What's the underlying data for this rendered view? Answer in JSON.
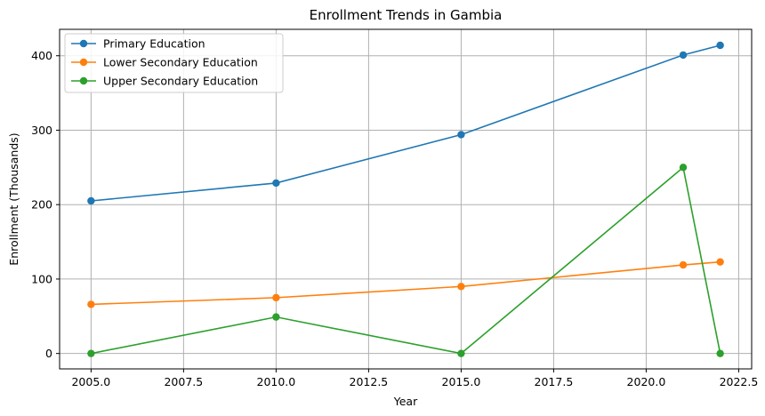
{
  "chart_data": {
    "type": "line",
    "title": "Enrollment Trends in Gambia",
    "xlabel": "Year",
    "ylabel": "Enrollment (Thousands)",
    "x": [
      2005,
      2010,
      2015,
      2021,
      2022
    ],
    "xlim": [
      2004.15,
      2022.85
    ],
    "ylim": [
      -20.7,
      435.5
    ],
    "xticks": [
      2005.0,
      2007.5,
      2010.0,
      2012.5,
      2015.0,
      2017.5,
      2020.0,
      2022.5
    ],
    "xtick_labels": [
      "2005.0",
      "2007.5",
      "2010.0",
      "2012.5",
      "2015.0",
      "2017.5",
      "2020.0",
      "2022.5"
    ],
    "yticks": [
      0,
      100,
      200,
      300,
      400
    ],
    "ytick_labels": [
      "0",
      "100",
      "200",
      "300",
      "400"
    ],
    "grid": true,
    "legend_position": "top-left",
    "series": [
      {
        "name": "Primary Education",
        "color": "#1f77b4",
        "values": [
          205,
          229,
          294,
          401,
          414
        ]
      },
      {
        "name": "Lower Secondary Education",
        "color": "#ff7f0e",
        "values": [
          66,
          75,
          90,
          119,
          123
        ]
      },
      {
        "name": "Upper Secondary Education",
        "color": "#2ca02c",
        "values": [
          0,
          49,
          0,
          250,
          0
        ]
      }
    ]
  }
}
